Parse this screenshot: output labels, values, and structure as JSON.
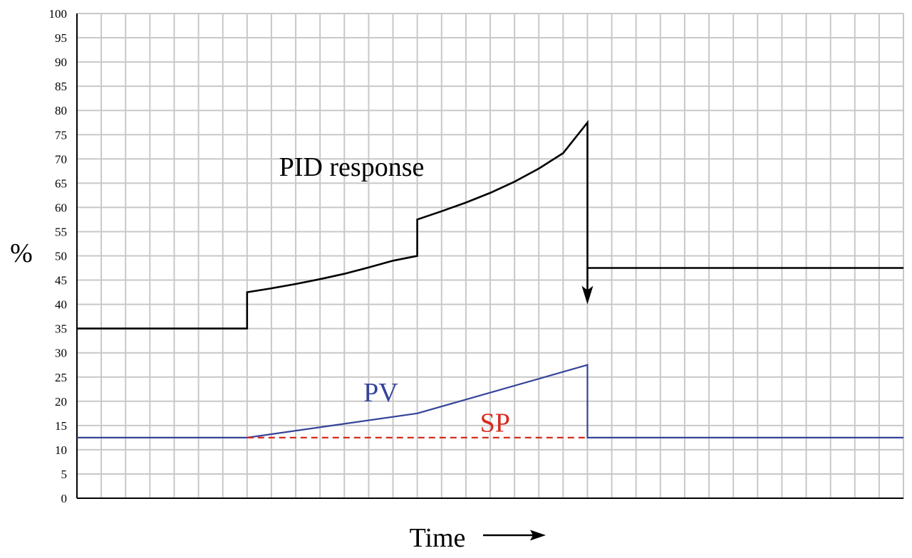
{
  "chart_data": {
    "type": "line",
    "xlabel": "Time",
    "ylabel": "%",
    "ylim": [
      0,
      100
    ],
    "yticks": [
      0,
      5,
      10,
      15,
      20,
      25,
      30,
      35,
      40,
      45,
      50,
      55,
      60,
      65,
      70,
      75,
      80,
      85,
      90,
      95,
      100
    ],
    "grid": true,
    "xticks_labeled": false,
    "xlim": [
      0,
      34
    ],
    "series": [
      {
        "name": "PID response",
        "color": "#000000",
        "style": "solid",
        "points": [
          [
            0,
            35
          ],
          [
            7,
            35
          ],
          [
            7,
            42.5
          ],
          [
            8,
            43.3
          ],
          [
            9,
            44.2
          ],
          [
            10,
            45.2
          ],
          [
            11,
            46.3
          ],
          [
            12,
            47.6
          ],
          [
            13,
            49
          ],
          [
            14,
            50
          ],
          [
            14,
            57.5
          ],
          [
            15,
            59.2
          ],
          [
            16,
            61
          ],
          [
            17,
            63
          ],
          [
            18,
            65.3
          ],
          [
            19,
            68
          ],
          [
            20,
            71.2
          ],
          [
            21,
            77.5
          ],
          [
            21,
            47.5
          ],
          [
            34,
            47.5
          ]
        ]
      },
      {
        "name": "PV",
        "color": "#34439a",
        "style": "solid",
        "points": [
          [
            0,
            12.5
          ],
          [
            7,
            12.5
          ],
          [
            14,
            17.5
          ],
          [
            21,
            27.5
          ],
          [
            21,
            12.5
          ],
          [
            34,
            12.5
          ]
        ]
      },
      {
        "name": "SP",
        "color": "#d62b1f",
        "style": "dashed",
        "points": [
          [
            7,
            12.5
          ],
          [
            21,
            12.5
          ]
        ]
      }
    ],
    "annotations": [
      {
        "text": "PID response",
        "x": 11.3,
        "y": 66.5,
        "color": "#000000"
      },
      {
        "text": "PV",
        "x": 12.5,
        "y": 20,
        "color": "#34439a"
      },
      {
        "text": "SP",
        "x": 17.2,
        "y": 13.7,
        "color": "#d62b1f"
      }
    ],
    "arrow": {
      "from": [
        21,
        47.5
      ],
      "to": [
        21,
        40
      ],
      "color": "#000000"
    },
    "xlabel_arrow": "→"
  }
}
